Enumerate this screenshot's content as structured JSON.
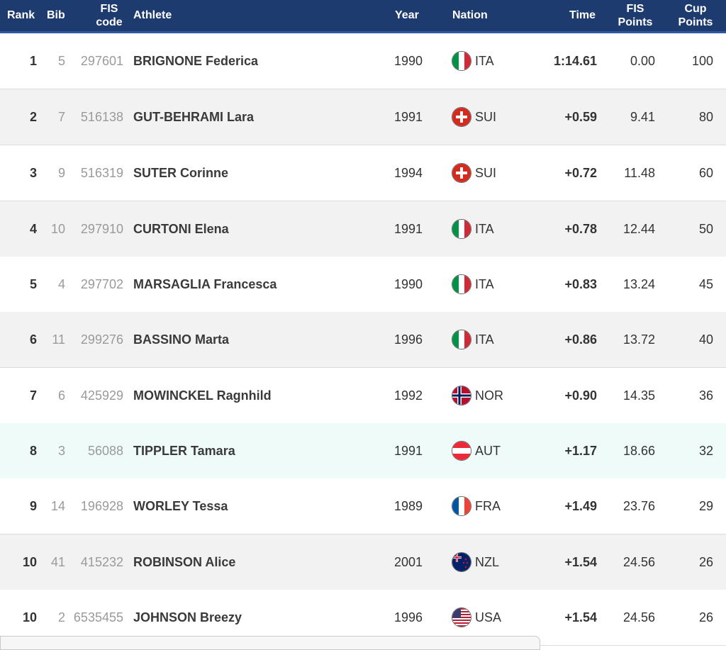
{
  "header": {
    "rank": "Rank",
    "bib": "Bib",
    "fis_code_line1": "FIS",
    "fis_code_line2": "code",
    "athlete": "Athlete",
    "year": "Year",
    "nation": "Nation",
    "time": "Time",
    "fis_points_line1": "FIS",
    "fis_points_line2": "Points",
    "cup_points_line1": "Cup",
    "cup_points_line2": "Points"
  },
  "colors": {
    "header_bg": "#1e3b6f",
    "row_alt_bg": "#f2f2f2",
    "row_highlight_bg": "#eefbf9"
  },
  "rows": [
    {
      "rank": "1",
      "bib": "5",
      "fis_code": "297601",
      "athlete": "BRIGNONE Federica",
      "year": "1990",
      "nation": "ITA",
      "flag": "italy-flag-icon",
      "time": "1:14.61",
      "fis_points": "0.00",
      "cup_points": "100"
    },
    {
      "rank": "2",
      "bib": "7",
      "fis_code": "516138",
      "athlete": "GUT-BEHRAMI Lara",
      "year": "1991",
      "nation": "SUI",
      "flag": "switzerland-flag-icon",
      "time": "+0.59",
      "fis_points": "9.41",
      "cup_points": "80"
    },
    {
      "rank": "3",
      "bib": "9",
      "fis_code": "516319",
      "athlete": "SUTER Corinne",
      "year": "1994",
      "nation": "SUI",
      "flag": "switzerland-flag-icon",
      "time": "+0.72",
      "fis_points": "11.48",
      "cup_points": "60"
    },
    {
      "rank": "4",
      "bib": "10",
      "fis_code": "297910",
      "athlete": "CURTONI Elena",
      "year": "1991",
      "nation": "ITA",
      "flag": "italy-flag-icon",
      "time": "+0.78",
      "fis_points": "12.44",
      "cup_points": "50"
    },
    {
      "rank": "5",
      "bib": "4",
      "fis_code": "297702",
      "athlete": "MARSAGLIA Francesca",
      "year": "1990",
      "nation": "ITA",
      "flag": "italy-flag-icon",
      "time": "+0.83",
      "fis_points": "13.24",
      "cup_points": "45"
    },
    {
      "rank": "6",
      "bib": "11",
      "fis_code": "299276",
      "athlete": "BASSINO Marta",
      "year": "1996",
      "nation": "ITA",
      "flag": "italy-flag-icon",
      "time": "+0.86",
      "fis_points": "13.72",
      "cup_points": "40"
    },
    {
      "rank": "7",
      "bib": "6",
      "fis_code": "425929",
      "athlete": "MOWINCKEL Ragnhild",
      "year": "1992",
      "nation": "NOR",
      "flag": "norway-flag-icon",
      "time": "+0.90",
      "fis_points": "14.35",
      "cup_points": "36"
    },
    {
      "rank": "8",
      "bib": "3",
      "fis_code": "56088",
      "athlete": "TIPPLER Tamara",
      "year": "1991",
      "nation": "AUT",
      "flag": "austria-flag-icon",
      "time": "+1.17",
      "fis_points": "18.66",
      "cup_points": "32"
    },
    {
      "rank": "9",
      "bib": "14",
      "fis_code": "196928",
      "athlete": "WORLEY Tessa",
      "year": "1989",
      "nation": "FRA",
      "flag": "france-flag-icon",
      "time": "+1.49",
      "fis_points": "23.76",
      "cup_points": "29"
    },
    {
      "rank": "10",
      "bib": "41",
      "fis_code": "415232",
      "athlete": "ROBINSON Alice",
      "year": "2001",
      "nation": "NZL",
      "flag": "new-zealand-flag-icon",
      "time": "+1.54",
      "fis_points": "24.56",
      "cup_points": "26"
    },
    {
      "rank": "10",
      "bib": "2",
      "fis_code": "6535455",
      "athlete": "JOHNSON Breezy",
      "year": "1996",
      "nation": "USA",
      "flag": "usa-flag-icon",
      "time": "+1.54",
      "fis_points": "24.56",
      "cup_points": "26"
    }
  ],
  "status_bar": {
    "text": ""
  }
}
